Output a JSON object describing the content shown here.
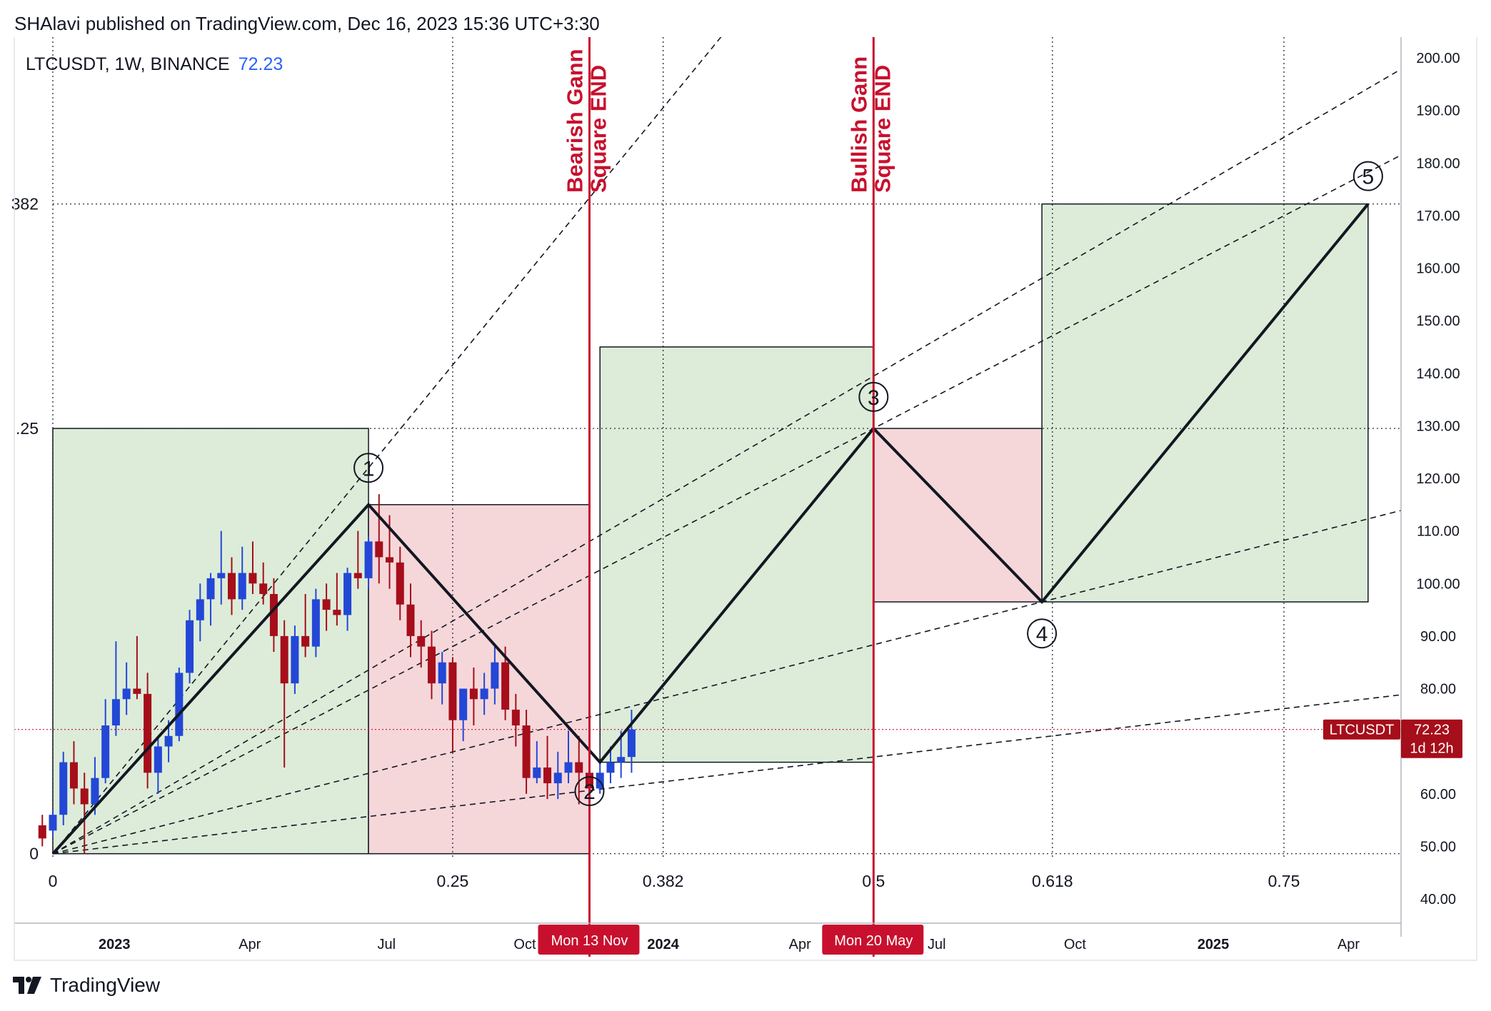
{
  "header": {
    "published": "SHAlavi published on TradingView.com, Dec 16, 2023 15:36 UTC+3:30",
    "symbol_line": "LTCUSDT, 1W, BINANCE",
    "last_price": "72.23"
  },
  "footer": {
    "brand": "TradingView"
  },
  "colors": {
    "bull": "#2347d6",
    "bear": "#a50e1a",
    "red_line": "#c8102e",
    "green_box": "#dcecd9",
    "red_box": "#f5d7da"
  },
  "chart_data": {
    "type": "candlestick",
    "symbol": "LTCUSDT",
    "timeframe": "1W",
    "exchange": "BINANCE",
    "y_axis": {
      "min": 40,
      "max": 200,
      "ticks": [
        "200.00",
        "190.00",
        "180.00",
        "170.00",
        "160.00",
        "150.00",
        "140.00",
        "130.00",
        "120.00",
        "110.00",
        "100.00",
        "90.00",
        "80.00",
        "70.00",
        "60.00",
        "50.00",
        "40.00"
      ]
    },
    "x_axis_labels": [
      {
        "label": "2023",
        "date": "2023-01-01",
        "bold": true
      },
      {
        "label": "Apr",
        "date": "2023-04-01",
        "bold": false
      },
      {
        "label": "Jul",
        "date": "2023-07-01",
        "bold": false
      },
      {
        "label": "Oct",
        "date": "2023-10-01",
        "bold": false
      },
      {
        "label": "2024",
        "date": "2024-01-01",
        "bold": true
      },
      {
        "label": "Apr",
        "date": "2024-04-01",
        "bold": false
      },
      {
        "label": "Jul",
        "date": "2024-07-01",
        "bold": false
      },
      {
        "label": "Oct",
        "date": "2024-10-01",
        "bold": false
      },
      {
        "label": "2025",
        "date": "2025-01-01",
        "bold": true
      },
      {
        "label": "Apr",
        "date": "2025-04-01",
        "bold": false
      }
    ],
    "gann_time_levels": [
      {
        "label": "0",
        "date": "2022-11-21"
      },
      {
        "label": "0.25",
        "date": "2023-08-14"
      },
      {
        "label": "0.382",
        "date": "2024-01-01"
      },
      {
        "label": "0.5",
        "date": "2024-05-20"
      },
      {
        "label": "0.618",
        "date": "2024-09-16"
      },
      {
        "label": "0.75",
        "date": "2025-02-17"
      }
    ],
    "gann_price_levels": [
      {
        "label": "0",
        "value": 48.6
      },
      {
        "label": ".25",
        "value": 129.5
      },
      {
        "label": "382",
        "value": 172.2
      }
    ],
    "vertical_markers": [
      {
        "title": [
          "Bearish Gann",
          "Square END"
        ],
        "date_label": "Mon 13 Nov",
        "date": "2023-11-13"
      },
      {
        "title": [
          "Bullish Gann",
          "Square END"
        ],
        "date_label": "Mon 20 May",
        "date": "2024-05-20"
      }
    ],
    "last_price": {
      "symbol": "LTCUSDT",
      "value": "72.23",
      "countdown": "1d 12h"
    },
    "waves": [
      {
        "label": "1",
        "date": "2023-06-19",
        "value": 115,
        "label_value": 122,
        "label_date": "2023-06-19"
      },
      {
        "label": "2",
        "date": "2023-11-20",
        "value": 66,
        "label_value": 60.5,
        "label_date": "2023-11-13"
      },
      {
        "label": "3",
        "date": "2024-05-20",
        "value": 129.5,
        "label_value": 135.5,
        "label_date": "2024-05-20"
      },
      {
        "label": "4",
        "date": "2024-09-09",
        "value": 96.5,
        "label_value": 90.5,
        "label_date": "2024-09-09"
      },
      {
        "label": "5",
        "date": "2025-04-14",
        "value": 172.2,
        "label_value": 177.5,
        "label_date": "2025-04-14"
      }
    ],
    "wave_path": [
      {
        "date": "2022-11-21",
        "value": 48.6
      },
      {
        "date": "2023-06-19",
        "value": 115
      },
      {
        "date": "2023-11-20",
        "value": 66
      },
      {
        "date": "2024-05-20",
        "value": 129.5
      },
      {
        "date": "2024-09-09",
        "value": 96.5
      },
      {
        "date": "2025-04-14",
        "value": 172.2
      }
    ],
    "boxes": [
      {
        "kind": "green",
        "from": "2022-11-21",
        "to": "2023-06-19",
        "low": 48.6,
        "high": 129.5
      },
      {
        "kind": "red",
        "from": "2023-06-19",
        "to": "2023-11-13",
        "low": 48.6,
        "high": 115
      },
      {
        "kind": "green",
        "from": "2023-11-20",
        "to": "2024-05-20",
        "low": 66,
        "high": 145
      },
      {
        "kind": "red",
        "from": "2024-05-20",
        "to": "2024-09-09",
        "low": 96.5,
        "high": 129.5
      },
      {
        "kind": "green",
        "from": "2024-09-09",
        "to": "2025-04-14",
        "low": 96.5,
        "high": 172.2
      }
    ],
    "fan_lines": [
      {
        "from": {
          "date": "2022-11-21",
          "value": 48.6
        },
        "to": {
          "date": "2023-06-19",
          "value": 122
        }
      },
      {
        "from": {
          "date": "2022-11-21",
          "value": 48.6
        },
        "to": {
          "date": "2023-11-13",
          "value": 108
        }
      },
      {
        "from": {
          "date": "2022-11-21",
          "value": 48.6
        },
        "to": {
          "date": "2024-05-20",
          "value": 129.5
        }
      },
      {
        "from": {
          "date": "2022-11-21",
          "value": 48.6
        },
        "to": {
          "date": "2024-09-09",
          "value": 96.5
        }
      },
      {
        "from": {
          "date": "2022-11-21",
          "value": 48.6
        },
        "to": {
          "date": "2024-05-20",
          "value": 67
        }
      }
    ],
    "candles": [
      {
        "date": "2022-11-14",
        "o": 54,
        "h": 56,
        "l": 50,
        "c": 51.5
      },
      {
        "date": "2022-11-21",
        "o": 53,
        "h": 57,
        "l": 52,
        "c": 56
      },
      {
        "date": "2022-11-28",
        "o": 56,
        "h": 68,
        "l": 54,
        "c": 66
      },
      {
        "date": "2022-12-05",
        "o": 66,
        "h": 70,
        "l": 58,
        "c": 61
      },
      {
        "date": "2022-12-12",
        "o": 61,
        "h": 64,
        "l": 48.6,
        "c": 58
      },
      {
        "date": "2022-12-19",
        "o": 58,
        "h": 67,
        "l": 56,
        "c": 63
      },
      {
        "date": "2022-12-26",
        "o": 63,
        "h": 78,
        "l": 62,
        "c": 73
      },
      {
        "date": "2023-01-02",
        "o": 73,
        "h": 89,
        "l": 71,
        "c": 78
      },
      {
        "date": "2023-01-09",
        "o": 78,
        "h": 85,
        "l": 75,
        "c": 80
      },
      {
        "date": "2023-01-16",
        "o": 80,
        "h": 90,
        "l": 78,
        "c": 79
      },
      {
        "date": "2023-01-23",
        "o": 79,
        "h": 83,
        "l": 61,
        "c": 64
      },
      {
        "date": "2023-01-30",
        "o": 64,
        "h": 71,
        "l": 60,
        "c": 69
      },
      {
        "date": "2023-02-06",
        "o": 69,
        "h": 74,
        "l": 66,
        "c": 71
      },
      {
        "date": "2023-02-13",
        "o": 71,
        "h": 84,
        "l": 70,
        "c": 83
      },
      {
        "date": "2023-02-20",
        "o": 83,
        "h": 95,
        "l": 81,
        "c": 93
      },
      {
        "date": "2023-02-27",
        "o": 93,
        "h": 100,
        "l": 89,
        "c": 97
      },
      {
        "date": "2023-03-06",
        "o": 97,
        "h": 102,
        "l": 92,
        "c": 101
      },
      {
        "date": "2023-03-13",
        "o": 101,
        "h": 110,
        "l": 96,
        "c": 102
      },
      {
        "date": "2023-03-20",
        "o": 102,
        "h": 105,
        "l": 94,
        "c": 97
      },
      {
        "date": "2023-03-27",
        "o": 97,
        "h": 107,
        "l": 95,
        "c": 102
      },
      {
        "date": "2023-04-03",
        "o": 102,
        "h": 108,
        "l": 98,
        "c": 100
      },
      {
        "date": "2023-04-10",
        "o": 100,
        "h": 104,
        "l": 96,
        "c": 98
      },
      {
        "date": "2023-04-17",
        "o": 98,
        "h": 101,
        "l": 87,
        "c": 90
      },
      {
        "date": "2023-04-24",
        "o": 90,
        "h": 93,
        "l": 65,
        "c": 81
      },
      {
        "date": "2023-05-01",
        "o": 81,
        "h": 92,
        "l": 79,
        "c": 90
      },
      {
        "date": "2023-05-08",
        "o": 90,
        "h": 98,
        "l": 86,
        "c": 88
      },
      {
        "date": "2023-05-15",
        "o": 88,
        "h": 99,
        "l": 86,
        "c": 97
      },
      {
        "date": "2023-05-22",
        "o": 97,
        "h": 100,
        "l": 91,
        "c": 95
      },
      {
        "date": "2023-05-29",
        "o": 95,
        "h": 102,
        "l": 92,
        "c": 94
      },
      {
        "date": "2023-06-05",
        "o": 94,
        "h": 103,
        "l": 91,
        "c": 102
      },
      {
        "date": "2023-06-12",
        "o": 102,
        "h": 110,
        "l": 99,
        "c": 101
      },
      {
        "date": "2023-06-19",
        "o": 101,
        "h": 109,
        "l": 99,
        "c": 108
      },
      {
        "date": "2023-06-26",
        "o": 108,
        "h": 117,
        "l": 100,
        "c": 105
      },
      {
        "date": "2023-07-03",
        "o": 105,
        "h": 113,
        "l": 99,
        "c": 104
      },
      {
        "date": "2023-07-10",
        "o": 104,
        "h": 107,
        "l": 93,
        "c": 96
      },
      {
        "date": "2023-07-17",
        "o": 96,
        "h": 100,
        "l": 86,
        "c": 90
      },
      {
        "date": "2023-07-24",
        "o": 90,
        "h": 93,
        "l": 84,
        "c": 88
      },
      {
        "date": "2023-07-31",
        "o": 88,
        "h": 91,
        "l": 78,
        "c": 81
      },
      {
        "date": "2023-08-07",
        "o": 81,
        "h": 87,
        "l": 77,
        "c": 85
      },
      {
        "date": "2023-08-14",
        "o": 85,
        "h": 86,
        "l": 68,
        "c": 74
      },
      {
        "date": "2023-08-21",
        "o": 74,
        "h": 80,
        "l": 70,
        "c": 80
      },
      {
        "date": "2023-08-28",
        "o": 80,
        "h": 84,
        "l": 73,
        "c": 78
      },
      {
        "date": "2023-09-04",
        "o": 78,
        "h": 83,
        "l": 75,
        "c": 80
      },
      {
        "date": "2023-09-11",
        "o": 80,
        "h": 88,
        "l": 77,
        "c": 85
      },
      {
        "date": "2023-09-18",
        "o": 85,
        "h": 88,
        "l": 74,
        "c": 76
      },
      {
        "date": "2023-09-25",
        "o": 76,
        "h": 79,
        "l": 69,
        "c": 73
      },
      {
        "date": "2023-10-02",
        "o": 73,
        "h": 76,
        "l": 60,
        "c": 63
      },
      {
        "date": "2023-10-09",
        "o": 63,
        "h": 70,
        "l": 62,
        "c": 65
      },
      {
        "date": "2023-10-16",
        "o": 65,
        "h": 71,
        "l": 59,
        "c": 62
      },
      {
        "date": "2023-10-23",
        "o": 62,
        "h": 68,
        "l": 59,
        "c": 64
      },
      {
        "date": "2023-10-30",
        "o": 64,
        "h": 72,
        "l": 62,
        "c": 66
      },
      {
        "date": "2023-11-06",
        "o": 66,
        "h": 71,
        "l": 58,
        "c": 64
      },
      {
        "date": "2023-11-13",
        "o": 64,
        "h": 69,
        "l": 61,
        "c": 61
      },
      {
        "date": "2023-11-20",
        "o": 61,
        "h": 66,
        "l": 60,
        "c": 64
      },
      {
        "date": "2023-11-27",
        "o": 64,
        "h": 69,
        "l": 62,
        "c": 66
      },
      {
        "date": "2023-12-04",
        "o": 66,
        "h": 72,
        "l": 63,
        "c": 67
      },
      {
        "date": "2023-12-11",
        "o": 67,
        "h": 76,
        "l": 64,
        "c": 72.23
      }
    ]
  }
}
